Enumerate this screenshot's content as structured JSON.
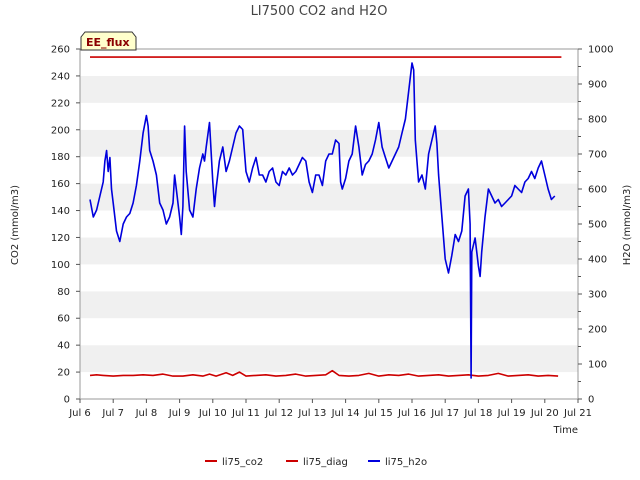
{
  "chart_data": {
    "type": "line",
    "title": "LI7500 CO2 and H2O",
    "badge": "EE_flux",
    "xlabel": "Time",
    "ylabel_left": "CO2 (mmol/m3)",
    "ylabel_right": "H2O (mmol/m3)",
    "x_range": [
      6,
      21
    ],
    "x_ticks": [
      {
        "v": 6,
        "label": "Jul 6"
      },
      {
        "v": 7,
        "label": "Jul 7"
      },
      {
        "v": 8,
        "label": "Jul 8"
      },
      {
        "v": 9,
        "label": "Jul 9"
      },
      {
        "v": 10,
        "label": "Jul 10"
      },
      {
        "v": 11,
        "label": "Jul 11"
      },
      {
        "v": 12,
        "label": "Jul 12"
      },
      {
        "v": 13,
        "label": "Jul 13"
      },
      {
        "v": 14,
        "label": "Jul 14"
      },
      {
        "v": 15,
        "label": "Jul 15"
      },
      {
        "v": 16,
        "label": "Jul 16"
      },
      {
        "v": 17,
        "label": "Jul 17"
      },
      {
        "v": 18,
        "label": "Jul 18"
      },
      {
        "v": 19,
        "label": "Jul 19"
      },
      {
        "v": 20,
        "label": "Jul 20"
      },
      {
        "v": 21,
        "label": "Jul 21"
      }
    ],
    "ylim_left": [
      0,
      260
    ],
    "y_ticks_left": [
      0,
      20,
      40,
      60,
      80,
      100,
      120,
      140,
      160,
      180,
      200,
      220,
      240,
      260
    ],
    "ylim_right": [
      0,
      1000
    ],
    "y_ticks_right": [
      0,
      100,
      200,
      300,
      400,
      500,
      600,
      700,
      800,
      900,
      1000
    ],
    "grid": "horizontal bands",
    "legend_position": "bottom",
    "series": [
      {
        "name": "li75_co2",
        "color": "#cc0000",
        "axis": "left",
        "points": [
          [
            6.3,
            17.5
          ],
          [
            6.5,
            18
          ],
          [
            6.7,
            17.5
          ],
          [
            7.0,
            17
          ],
          [
            7.3,
            17.5
          ],
          [
            7.6,
            17.5
          ],
          [
            7.9,
            18
          ],
          [
            8.2,
            17.5
          ],
          [
            8.5,
            18.5
          ],
          [
            8.8,
            17
          ],
          [
            9.1,
            17
          ],
          [
            9.4,
            18
          ],
          [
            9.7,
            17
          ],
          [
            9.9,
            18.5
          ],
          [
            10.1,
            17
          ],
          [
            10.4,
            19.5
          ],
          [
            10.6,
            17.5
          ],
          [
            10.8,
            20
          ],
          [
            11.0,
            17
          ],
          [
            11.3,
            17.5
          ],
          [
            11.6,
            18
          ],
          [
            11.9,
            17
          ],
          [
            12.2,
            17.5
          ],
          [
            12.5,
            18.5
          ],
          [
            12.8,
            17
          ],
          [
            13.1,
            17.5
          ],
          [
            13.4,
            18
          ],
          [
            13.6,
            21
          ],
          [
            13.8,
            17.5
          ],
          [
            14.1,
            17
          ],
          [
            14.4,
            17.5
          ],
          [
            14.7,
            19
          ],
          [
            15.0,
            17
          ],
          [
            15.3,
            18
          ],
          [
            15.6,
            17.5
          ],
          [
            15.9,
            18.5
          ],
          [
            16.2,
            17
          ],
          [
            16.5,
            17.5
          ],
          [
            16.8,
            18
          ],
          [
            17.1,
            17
          ],
          [
            17.4,
            17.5
          ],
          [
            17.7,
            18
          ],
          [
            18.0,
            17
          ],
          [
            18.3,
            17.5
          ],
          [
            18.6,
            19
          ],
          [
            18.9,
            17
          ],
          [
            19.2,
            17.5
          ],
          [
            19.5,
            18
          ],
          [
            19.8,
            17
          ],
          [
            20.1,
            17.5
          ],
          [
            20.4,
            17
          ]
        ]
      },
      {
        "name": "li75_diag",
        "color": "#cc0000",
        "axis": "left",
        "points": [
          [
            6.3,
            254
          ],
          [
            20.5,
            254
          ]
        ]
      },
      {
        "name": "li75_h2o",
        "color": "#0000dd",
        "axis": "right",
        "points": [
          [
            6.3,
            570
          ],
          [
            6.4,
            520
          ],
          [
            6.5,
            540
          ],
          [
            6.6,
            580
          ],
          [
            6.7,
            620
          ],
          [
            6.75,
            680
          ],
          [
            6.8,
            710
          ],
          [
            6.85,
            650
          ],
          [
            6.9,
            690
          ],
          [
            6.95,
            600
          ],
          [
            7.0,
            560
          ],
          [
            7.1,
            480
          ],
          [
            7.2,
            450
          ],
          [
            7.3,
            500
          ],
          [
            7.4,
            520
          ],
          [
            7.5,
            530
          ],
          [
            7.6,
            560
          ],
          [
            7.7,
            610
          ],
          [
            7.8,
            680
          ],
          [
            7.9,
            760
          ],
          [
            8.0,
            810
          ],
          [
            8.05,
            780
          ],
          [
            8.1,
            710
          ],
          [
            8.2,
            680
          ],
          [
            8.3,
            640
          ],
          [
            8.4,
            560
          ],
          [
            8.5,
            540
          ],
          [
            8.6,
            500
          ],
          [
            8.7,
            520
          ],
          [
            8.8,
            560
          ],
          [
            8.85,
            640
          ],
          [
            8.9,
            600
          ],
          [
            9.0,
            520
          ],
          [
            9.05,
            470
          ],
          [
            9.1,
            550
          ],
          [
            9.15,
            780
          ],
          [
            9.2,
            650
          ],
          [
            9.3,
            540
          ],
          [
            9.4,
            520
          ],
          [
            9.5,
            600
          ],
          [
            9.6,
            660
          ],
          [
            9.7,
            700
          ],
          [
            9.75,
            680
          ],
          [
            9.8,
            720
          ],
          [
            9.9,
            790
          ],
          [
            10.0,
            620
          ],
          [
            10.05,
            550
          ],
          [
            10.1,
            600
          ],
          [
            10.2,
            680
          ],
          [
            10.3,
            720
          ],
          [
            10.4,
            650
          ],
          [
            10.5,
            680
          ],
          [
            10.6,
            720
          ],
          [
            10.7,
            760
          ],
          [
            10.8,
            780
          ],
          [
            10.9,
            770
          ],
          [
            11.0,
            650
          ],
          [
            11.1,
            620
          ],
          [
            11.2,
            660
          ],
          [
            11.3,
            690
          ],
          [
            11.4,
            640
          ],
          [
            11.5,
            640
          ],
          [
            11.6,
            620
          ],
          [
            11.7,
            650
          ],
          [
            11.8,
            660
          ],
          [
            11.9,
            620
          ],
          [
            12.0,
            610
          ],
          [
            12.1,
            650
          ],
          [
            12.2,
            640
          ],
          [
            12.3,
            660
          ],
          [
            12.4,
            640
          ],
          [
            12.5,
            650
          ],
          [
            12.6,
            670
          ],
          [
            12.7,
            690
          ],
          [
            12.8,
            680
          ],
          [
            12.9,
            620
          ],
          [
            13.0,
            590
          ],
          [
            13.1,
            640
          ],
          [
            13.2,
            640
          ],
          [
            13.3,
            610
          ],
          [
            13.4,
            680
          ],
          [
            13.5,
            700
          ],
          [
            13.6,
            700
          ],
          [
            13.7,
            740
          ],
          [
            13.8,
            730
          ],
          [
            13.85,
            620
          ],
          [
            13.9,
            600
          ],
          [
            14.0,
            630
          ],
          [
            14.1,
            680
          ],
          [
            14.2,
            700
          ],
          [
            14.3,
            780
          ],
          [
            14.4,
            720
          ],
          [
            14.5,
            640
          ],
          [
            14.6,
            670
          ],
          [
            14.7,
            680
          ],
          [
            14.8,
            700
          ],
          [
            14.9,
            740
          ],
          [
            15.0,
            790
          ],
          [
            15.1,
            720
          ],
          [
            15.2,
            690
          ],
          [
            15.3,
            660
          ],
          [
            15.4,
            680
          ],
          [
            15.5,
            700
          ],
          [
            15.6,
            720
          ],
          [
            15.7,
            760
          ],
          [
            15.8,
            800
          ],
          [
            15.9,
            880
          ],
          [
            16.0,
            960
          ],
          [
            16.05,
            940
          ],
          [
            16.1,
            740
          ],
          [
            16.2,
            620
          ],
          [
            16.3,
            640
          ],
          [
            16.4,
            600
          ],
          [
            16.5,
            700
          ],
          [
            16.6,
            740
          ],
          [
            16.7,
            780
          ],
          [
            16.75,
            730
          ],
          [
            16.8,
            640
          ],
          [
            16.9,
            520
          ],
          [
            17.0,
            400
          ],
          [
            17.1,
            360
          ],
          [
            17.2,
            410
          ],
          [
            17.3,
            470
          ],
          [
            17.4,
            450
          ],
          [
            17.5,
            480
          ],
          [
            17.6,
            580
          ],
          [
            17.7,
            600
          ],
          [
            17.75,
            500
          ],
          [
            17.78,
            60
          ],
          [
            17.8,
            420
          ],
          [
            17.9,
            460
          ],
          [
            18.0,
            380
          ],
          [
            18.05,
            350
          ],
          [
            18.1,
            420
          ],
          [
            18.2,
            520
          ],
          [
            18.3,
            600
          ],
          [
            18.4,
            580
          ],
          [
            18.5,
            560
          ],
          [
            18.6,
            570
          ],
          [
            18.7,
            550
          ],
          [
            18.8,
            560
          ],
          [
            18.9,
            570
          ],
          [
            19.0,
            580
          ],
          [
            19.1,
            610
          ],
          [
            19.2,
            600
          ],
          [
            19.3,
            590
          ],
          [
            19.4,
            620
          ],
          [
            19.5,
            630
          ],
          [
            19.6,
            650
          ],
          [
            19.7,
            630
          ],
          [
            19.8,
            660
          ],
          [
            19.9,
            680
          ],
          [
            20.0,
            640
          ],
          [
            20.1,
            600
          ],
          [
            20.2,
            570
          ],
          [
            20.3,
            580
          ]
        ]
      }
    ]
  }
}
